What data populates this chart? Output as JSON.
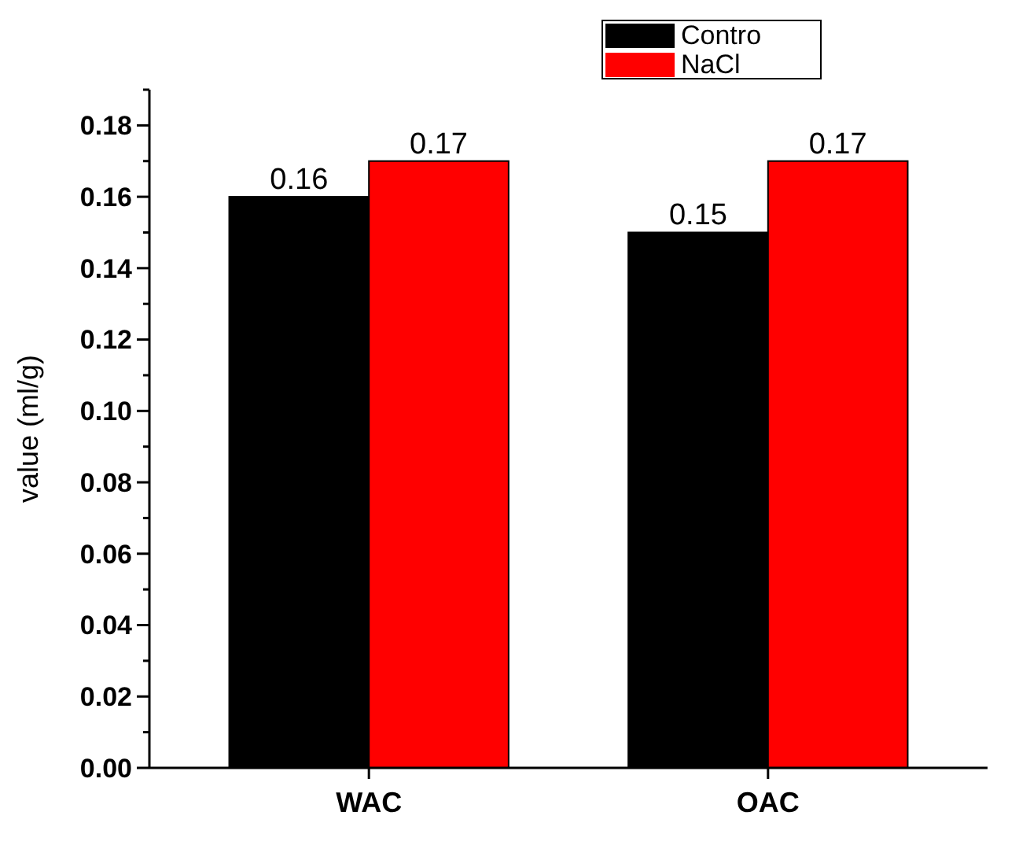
{
  "chart_data": {
    "type": "bar",
    "ylabel": "value (ml/g)",
    "categories": [
      "WAC",
      "OAC"
    ],
    "series": [
      {
        "name": "Contro",
        "color": "#000000",
        "values": [
          0.16,
          0.15
        ]
      },
      {
        "name": "NaCl",
        "color": "#ff0000",
        "values": [
          0.17,
          0.17
        ]
      }
    ],
    "ylim": [
      0,
      0.19
    ],
    "yticks": [
      {
        "value": 0,
        "label": "0.00"
      },
      {
        "value": 0.01,
        "label": null
      },
      {
        "value": 0.02,
        "label": "0.02"
      },
      {
        "value": 0.03,
        "label": null
      },
      {
        "value": 0.04,
        "label": "0.04"
      },
      {
        "value": 0.05,
        "label": null
      },
      {
        "value": 0.06,
        "label": "0.06"
      },
      {
        "value": 0.07,
        "label": null
      },
      {
        "value": 0.08,
        "label": "0.08"
      },
      {
        "value": 0.09,
        "label": null
      },
      {
        "value": 0.1,
        "label": "0.10"
      },
      {
        "value": 0.11,
        "label": null
      },
      {
        "value": 0.12,
        "label": "0.12"
      },
      {
        "value": 0.13,
        "label": null
      },
      {
        "value": 0.14,
        "label": "0.14"
      },
      {
        "value": 0.15,
        "label": null
      },
      {
        "value": 0.16,
        "label": "0.16"
      },
      {
        "value": 0.17,
        "label": null
      },
      {
        "value": 0.18,
        "label": "0.18"
      },
      {
        "value": 0.19,
        "label": null
      }
    ],
    "data_labels": true,
    "grid": false,
    "legend": "top"
  }
}
